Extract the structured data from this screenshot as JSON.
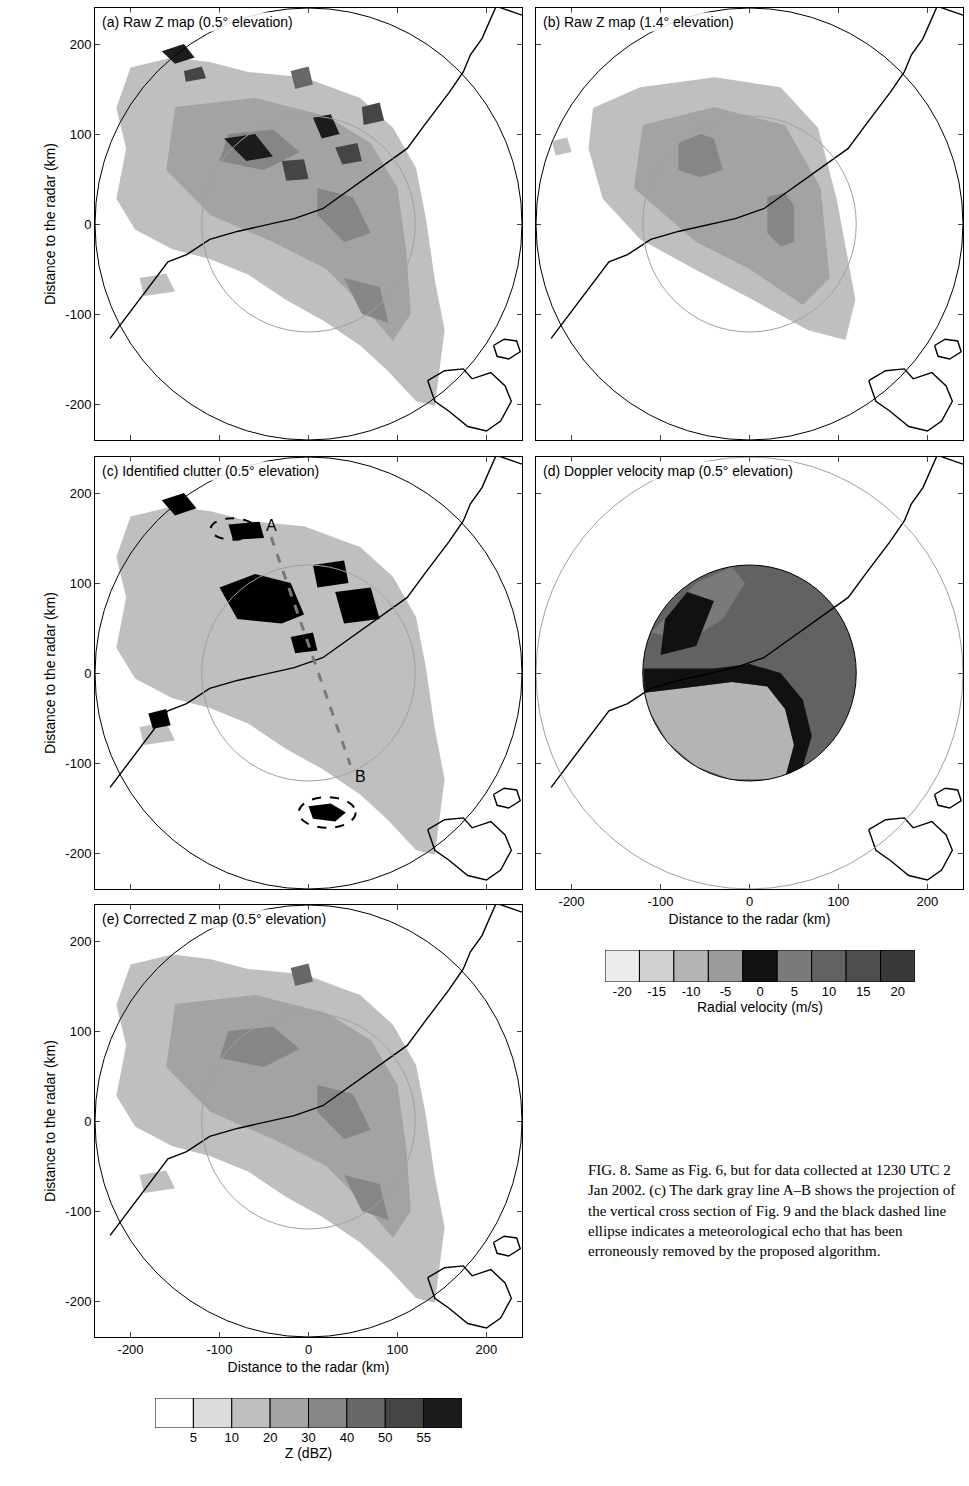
{
  "chart_data": [
    {
      "type": "map",
      "title": "(a) Raw Z map (0.5° elevation)",
      "xlim": [
        -240,
        240
      ],
      "ylim": [
        -240,
        240
      ],
      "xticks": [
        -200,
        -100,
        0,
        100,
        200
      ],
      "yticks": [
        -200,
        -100,
        0,
        100,
        200
      ],
      "tick_labels": "y",
      "ylabel": "Distance to the radar (km)",
      "circles": [
        {
          "radius": 240,
          "color": "#000000"
        },
        {
          "radius": 120,
          "color": "#a0a0a0"
        }
      ],
      "echoes": [
        {
          "level": 10,
          "x": [
            -200,
            -153,
            -111,
            -68,
            -5,
            58,
            95,
            121,
            132,
            142,
            153,
            142,
            121,
            89,
            58,
            16,
            -26,
            -68,
            -111,
            -153,
            -195,
            -216,
            -205,
            -216
          ],
          "y": [
            174,
            185,
            180,
            169,
            163,
            140,
            107,
            62,
            6,
            -62,
            -118,
            -202,
            -197,
            -163,
            -135,
            -107,
            -84,
            -56,
            -39,
            -28,
            -6,
            28,
            84,
            129
          ]
        },
        {
          "level": 10,
          "x": [
            -190,
            -160,
            -150,
            -185
          ],
          "y": [
            -60,
            -55,
            -75,
            -80
          ]
        },
        {
          "level": 20,
          "x": [
            -150,
            -60,
            20,
            70,
            100,
            110,
            115,
            95,
            60,
            20,
            -40,
            -110,
            -160
          ],
          "y": [
            130,
            140,
            120,
            90,
            40,
            -30,
            -100,
            -130,
            -90,
            -50,
            -20,
            10,
            60
          ]
        },
        {
          "level": 30,
          "x": [
            -90,
            -40,
            -10,
            -50,
            -100
          ],
          "y": [
            100,
            105,
            80,
            60,
            70
          ]
        },
        {
          "level": 30,
          "x": [
            10,
            50,
            70,
            40,
            10
          ],
          "y": [
            40,
            30,
            -10,
            -20,
            10
          ]
        },
        {
          "level": 30,
          "x": [
            40,
            80,
            90,
            60
          ],
          "y": [
            -60,
            -70,
            -110,
            -100
          ]
        },
        {
          "level": 40,
          "x": [
            -20,
            0,
            5,
            -15
          ],
          "y": [
            170,
            175,
            155,
            150
          ]
        },
        {
          "level": 55,
          "x": [
            -165,
            -140,
            -128,
            -150
          ],
          "y": [
            192,
            200,
            185,
            178
          ]
        },
        {
          "level": 50,
          "x": [
            -140,
            -120,
            -115,
            -138
          ],
          "y": [
            170,
            175,
            162,
            158
          ]
        },
        {
          "level": 55,
          "x": [
            5,
            25,
            35,
            15
          ],
          "y": [
            118,
            122,
            100,
            95
          ]
        },
        {
          "level": 50,
          "x": [
            30,
            55,
            60,
            38
          ],
          "y": [
            85,
            90,
            70,
            66
          ]
        },
        {
          "level": 55,
          "x": [
            -95,
            -60,
            -40,
            -70
          ],
          "y": [
            95,
            100,
            75,
            70
          ]
        },
        {
          "level": 50,
          "x": [
            -30,
            -5,
            0,
            -25
          ],
          "y": [
            70,
            72,
            50,
            48
          ]
        },
        {
          "level": 50,
          "x": [
            60,
            80,
            85,
            62
          ],
          "y": [
            130,
            135,
            115,
            110
          ]
        }
      ]
    },
    {
      "type": "map",
      "title": "(b) Raw Z map (1.4° elevation)",
      "xlim": [
        -240,
        240
      ],
      "ylim": [
        -240,
        240
      ],
      "xticks": [
        -200,
        -100,
        0,
        100,
        200
      ],
      "yticks": [
        -200,
        -100,
        0,
        100,
        200
      ],
      "tick_labels": false,
      "circles": [
        {
          "radius": 240,
          "color": "#000000"
        },
        {
          "radius": 120,
          "color": "#a0a0a0"
        }
      ],
      "echoes": [
        {
          "level": 10,
          "x": [
            -176,
            -123,
            -39,
            35,
            77,
            98,
            119,
            108,
            66,
            3,
            -60,
            -123,
            -165,
            -181
          ],
          "y": [
            129,
            152,
            163,
            152,
            107,
            28,
            -84,
            -129,
            -118,
            -84,
            -51,
            -17,
            28,
            84
          ]
        },
        {
          "level": 10,
          "x": [
            -222,
            -205,
            -200,
            -218
          ],
          "y": [
            92,
            96,
            80,
            76
          ]
        },
        {
          "level": 20,
          "x": [
            -120,
            -40,
            40,
            80,
            90,
            60,
            0,
            -60,
            -130
          ],
          "y": [
            110,
            130,
            110,
            40,
            -60,
            -90,
            -50,
            -20,
            40
          ]
        },
        {
          "level": 30,
          "x": [
            -80,
            -55,
            -40,
            -30,
            -55,
            -80
          ],
          "y": [
            90,
            100,
            95,
            60,
            52,
            60
          ]
        },
        {
          "level": 30,
          "x": [
            20,
            40,
            50,
            50,
            35,
            20
          ],
          "y": [
            30,
            35,
            20,
            -20,
            -25,
            -10
          ]
        }
      ]
    },
    {
      "type": "map",
      "title": "(c) Identified clutter (0.5° elevation)",
      "xlim": [
        -240,
        240
      ],
      "ylim": [
        -240,
        240
      ],
      "xticks": [
        -200,
        -100,
        0,
        100,
        200
      ],
      "yticks": [
        -200,
        -100,
        0,
        100,
        200
      ],
      "tick_labels": "y",
      "ylabel": "Distance to the radar (km)",
      "circles": [
        {
          "radius": 240,
          "color": "#000000"
        },
        {
          "radius": 120,
          "color": "#a0a0a0"
        }
      ],
      "echoes": [
        {
          "level": 10,
          "x": [
            -200,
            -153,
            -111,
            -68,
            -5,
            58,
            95,
            121,
            132,
            142,
            153,
            142,
            121,
            89,
            58,
            16,
            -26,
            -68,
            -111,
            -153,
            -195,
            -216,
            -205,
            -216
          ],
          "y": [
            174,
            185,
            180,
            169,
            163,
            140,
            107,
            62,
            6,
            -62,
            -118,
            -202,
            -197,
            -163,
            -135,
            -107,
            -84,
            -56,
            -39,
            -28,
            -6,
            28,
            84,
            129
          ]
        },
        {
          "level": 10,
          "x": [
            -190,
            -160,
            -150,
            -185
          ],
          "y": [
            -60,
            -55,
            -75,
            -80
          ]
        },
        {
          "color": "#000000",
          "x": [
            -165,
            -140,
            -126,
            -150
          ],
          "y": [
            192,
            200,
            183,
            175
          ]
        },
        {
          "color": "#000000",
          "x": [
            -90,
            -55,
            -50,
            -85
          ],
          "y": [
            165,
            168,
            150,
            148
          ]
        },
        {
          "color": "#000000",
          "x": [
            5,
            40,
            45,
            10
          ],
          "y": [
            120,
            125,
            100,
            95
          ]
        },
        {
          "color": "#000000",
          "x": [
            -100,
            -60,
            -20,
            -5,
            -30,
            -80
          ],
          "y": [
            95,
            110,
            100,
            65,
            55,
            60
          ]
        },
        {
          "color": "#000000",
          "x": [
            30,
            70,
            80,
            40
          ],
          "y": [
            90,
            95,
            60,
            55
          ]
        },
        {
          "color": "#000000",
          "x": [
            -180,
            -160,
            -155,
            -175
          ],
          "y": [
            -45,
            -40,
            -58,
            -62
          ]
        },
        {
          "color": "#000000",
          "x": [
            0,
            25,
            42,
            30,
            5
          ],
          "y": [
            -148,
            -145,
            -155,
            -165,
            -162
          ]
        },
        {
          "color": "#000000",
          "x": [
            -20,
            5,
            10,
            -15
          ],
          "y": [
            40,
            45,
            25,
            22
          ]
        }
      ],
      "ellipses": [
        {
          "x": 21,
          "y": -155,
          "rx": 32,
          "ry": 17
        },
        {
          "x": -85,
          "y": 160,
          "rx": 25,
          "ry": 12
        }
      ],
      "section": {
        "labels": [
          "A",
          "B"
        ],
        "x": [
          -42,
          47
        ],
        "y": [
          151,
          -102
        ],
        "color": "#7a7a7a"
      }
    },
    {
      "type": "map",
      "title": "(d) Doppler velocity map (0.5° elevation)",
      "xlim": [
        -240,
        240
      ],
      "ylim": [
        -240,
        240
      ],
      "xticks": [
        -200,
        -100,
        0,
        100,
        200
      ],
      "yticks": [
        -200,
        -100,
        0,
        100,
        200
      ],
      "tick_labels": "x",
      "xlabel": "Distance to the radar (km)",
      "circles": [
        {
          "radius": 240,
          "color": "#a0a0a0"
        },
        {
          "radius": 120,
          "color": "#000000"
        }
      ],
      "disk": {
        "radius": 120,
        "value": 10
      },
      "regions": [
        {
          "value": 5,
          "x": [
            -110,
            -60,
            -20,
            -5,
            -30,
            -70
          ],
          "y": [
            45,
            100,
            118,
            100,
            60,
            35
          ]
        },
        {
          "value": -10,
          "x": [
            -113,
            -92,
            -60,
            -21,
            21,
            41,
            50,
            40,
            20,
            -20,
            -60,
            -100,
            -118
          ],
          "y": [
            -41,
            -77,
            -104,
            -118,
            -118,
            -113,
            -80,
            -40,
            -15,
            -10,
            -15,
            -20,
            -22
          ]
        },
        {
          "value": 0,
          "x": [
            -118,
            -100,
            -60,
            -20,
            20,
            40,
            50,
            41,
            60,
            70,
            60,
            35,
            0,
            -40,
            -80,
            -119
          ],
          "y": [
            -22,
            -20,
            -15,
            -10,
            -15,
            -40,
            -80,
            -113,
            -104,
            -70,
            -30,
            0,
            10,
            5,
            5,
            5
          ]
        },
        {
          "value": 0,
          "x": [
            -100,
            -60,
            -40,
            -70,
            -95
          ],
          "y": [
            20,
            30,
            80,
            90,
            60
          ]
        }
      ]
    },
    {
      "type": "map",
      "title": "(e) Corrected Z map (0.5° elevation)",
      "xlim": [
        -240,
        240
      ],
      "ylim": [
        -240,
        240
      ],
      "xticks": [
        -200,
        -100,
        0,
        100,
        200
      ],
      "yticks": [
        -200,
        -100,
        0,
        100,
        200
      ],
      "tick_labels": true,
      "xlabel": "Distance to the radar (km)",
      "ylabel": "Distance to the radar (km)",
      "circles": [
        {
          "radius": 240,
          "color": "#000000"
        },
        {
          "radius": 120,
          "color": "#a0a0a0"
        }
      ],
      "echoes": [
        {
          "level": 10,
          "x": [
            -200,
            -153,
            -111,
            -68,
            -5,
            58,
            95,
            121,
            132,
            142,
            153,
            142,
            121,
            89,
            58,
            16,
            -26,
            -68,
            -111,
            -153,
            -195,
            -216,
            -205,
            -216
          ],
          "y": [
            174,
            185,
            180,
            169,
            163,
            140,
            107,
            62,
            6,
            -62,
            -118,
            -202,
            -197,
            -163,
            -135,
            -107,
            -84,
            -56,
            -39,
            -28,
            -6,
            28,
            84,
            129
          ]
        },
        {
          "level": 10,
          "x": [
            -190,
            -160,
            -150,
            -185
          ],
          "y": [
            -60,
            -55,
            -75,
            -80
          ]
        },
        {
          "level": 20,
          "x": [
            -150,
            -60,
            20,
            70,
            100,
            110,
            115,
            95,
            60,
            20,
            -40,
            -110,
            -160
          ],
          "y": [
            130,
            140,
            120,
            90,
            40,
            -30,
            -100,
            -130,
            -90,
            -50,
            -20,
            10,
            60
          ]
        },
        {
          "level": 30,
          "x": [
            -90,
            -40,
            -10,
            -50,
            -100
          ],
          "y": [
            100,
            105,
            80,
            60,
            70
          ]
        },
        {
          "level": 30,
          "x": [
            10,
            50,
            70,
            40,
            10
          ],
          "y": [
            40,
            30,
            -10,
            -20,
            10
          ]
        },
        {
          "level": 30,
          "x": [
            40,
            80,
            90,
            60
          ],
          "y": [
            -60,
            -70,
            -110,
            -100
          ]
        },
        {
          "level": 40,
          "x": [
            -20,
            0,
            5,
            -15
          ],
          "y": [
            170,
            175,
            155,
            150
          ]
        }
      ]
    }
  ],
  "coastline": {
    "x": [
      -223,
      -195,
      -174,
      -158,
      -137,
      -111,
      -79,
      -47,
      -16,
      16,
      47,
      79,
      111,
      132,
      147,
      158,
      174,
      182,
      195,
      203,
      211,
      240
    ],
    "y": [
      -127,
      -90,
      -62,
      -42,
      -34,
      -17,
      -8,
      -1,
      6,
      17,
      39,
      62,
      84,
      112,
      131,
      146,
      169,
      188,
      206,
      225,
      242,
      232
    ]
  },
  "islands": [
    {
      "x": [
        134,
        153,
        174,
        184,
        205,
        221,
        228,
        216,
        200,
        179,
        158,
        142,
        134
      ],
      "y": [
        -174,
        -163,
        -161,
        -172,
        -165,
        -180,
        -197,
        -219,
        -230,
        -225,
        -208,
        -197,
        -174
      ]
    },
    {
      "x": [
        208,
        220,
        234,
        238,
        225,
        212,
        208
      ],
      "y": [
        -135,
        -128,
        -130,
        -142,
        -150,
        -147,
        -135
      ]
    }
  ],
  "z_colorbar": {
    "bounds": [
      5,
      10,
      20,
      30,
      40,
      50,
      55
    ],
    "colors": [
      "#ffffff",
      "#dcdcdc",
      "#bfbfbf",
      "#a3a3a3",
      "#868686",
      "#676767",
      "#454545",
      "#1c1c1c"
    ],
    "label": "Z (dBZ)"
  },
  "velocity_colorbar": {
    "values": [
      -20,
      -15,
      -10,
      -5,
      0,
      5,
      10,
      15,
      20
    ],
    "colors": [
      "#ececec",
      "#d0d0d0",
      "#b4b4b4",
      "#9a9a9a",
      "#111111",
      "#7a7a7a",
      "#626262",
      "#4e4e4e",
      "#383838"
    ],
    "label": "Radial velocity (m/s)"
  },
  "caption": {
    "label": "FIG. 8.",
    "text": "Same as Fig. 6, but for data collected at 1230 UTC 2 Jan 2002. (c) The dark gray line A–B shows the projection of the vertical cross section of Fig. 9 and the black dashed line ellipse indicates a meteorological echo that has been erroneously removed by the proposed algorithm."
  }
}
